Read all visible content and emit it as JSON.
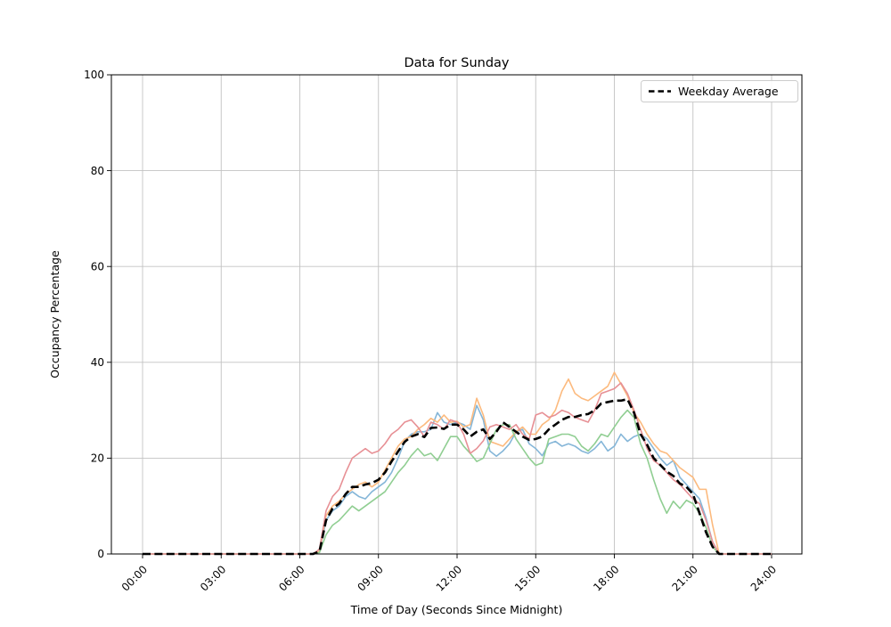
{
  "figure": {
    "background": "#ffffff"
  },
  "chart_data": {
    "type": "line",
    "title": "Data for Sunday",
    "xlabel": "Time of Day (Seconds Since Midnight)",
    "ylabel": "Occupancy Percentage",
    "xlim_seconds": [
      0,
      86400
    ],
    "ylim": [
      0,
      100
    ],
    "x_tick_seconds": [
      0,
      10800,
      21600,
      32400,
      43200,
      54000,
      64800,
      75600,
      86400
    ],
    "x_tick_labels": [
      "00:00",
      "03:00",
      "06:00",
      "09:00",
      "12:00",
      "15:00",
      "18:00",
      "21:00",
      "24:00"
    ],
    "y_ticks": [
      0,
      20,
      40,
      60,
      80,
      100
    ],
    "grid": true,
    "grid_color": "#c2c2c2",
    "spine_color": "#000000",
    "legend": {
      "location": "upper right",
      "entries": [
        {
          "label": "Weekday Average",
          "color": "#000000",
          "style": "dashed"
        }
      ]
    },
    "sample_interval_minutes": 15,
    "x_start_hour": 0,
    "series": [
      {
        "name": "line-1",
        "color": "#85b6d8",
        "dashed": false,
        "values": [
          0,
          0,
          0,
          0,
          0,
          0,
          0,
          0,
          0,
          0,
          0,
          0,
          0,
          0,
          0,
          0,
          0,
          0,
          0,
          0,
          0,
          0,
          0,
          0,
          0,
          0,
          0,
          0.5,
          7,
          9,
          10,
          12,
          13,
          12,
          11.5,
          13,
          14,
          15,
          17,
          20,
          23.5,
          25,
          25.5,
          25.5,
          26,
          29.5,
          27.5,
          27,
          27.5,
          27,
          26,
          31,
          28,
          21.5,
          20.4,
          21.5,
          23,
          25.5,
          26,
          23,
          22,
          20.5,
          23,
          23.5,
          22.5,
          23,
          22.5,
          21.5,
          21,
          22,
          23.5,
          21.5,
          22.5,
          25,
          23.5,
          24.5,
          25,
          24,
          22,
          20,
          18.5,
          19.5,
          16,
          14.5,
          13,
          11.5,
          7.5,
          2.5,
          0,
          0,
          0,
          0,
          0,
          0,
          0,
          0,
          0
        ]
      },
      {
        "name": "line-2",
        "color": "#fcba7e",
        "dashed": false,
        "values": [
          0,
          0,
          0,
          0,
          0,
          0,
          0,
          0,
          0,
          0,
          0,
          0,
          0,
          0,
          0,
          0,
          0,
          0,
          0,
          0,
          0,
          0,
          0,
          0,
          0,
          0,
          0,
          0.5,
          8,
          10,
          11,
          12.5,
          13.5,
          14.5,
          15,
          14,
          15,
          17.5,
          20,
          22.5,
          24,
          24.5,
          26,
          27,
          28.3,
          27.5,
          29,
          27.5,
          27.7,
          26.5,
          27,
          32.5,
          29,
          23.5,
          23,
          22.5,
          24,
          25.5,
          26.5,
          25,
          25,
          27,
          28,
          30,
          34,
          36.5,
          33.5,
          32.5,
          32,
          33,
          34,
          35,
          37.9,
          35.5,
          33,
          29.5,
          27.5,
          25,
          23,
          21.5,
          21,
          19.5,
          18,
          17,
          16,
          13.5,
          13.5,
          6,
          0,
          0,
          0,
          0,
          0,
          0,
          0,
          0,
          0
        ]
      },
      {
        "name": "line-3",
        "color": "#90ce92",
        "dashed": false,
        "values": [
          0,
          0,
          0,
          0,
          0,
          0,
          0,
          0,
          0,
          0,
          0,
          0,
          0,
          0,
          0,
          0,
          0,
          0,
          0,
          0,
          0,
          0,
          0,
          0,
          0,
          0,
          0,
          0.3,
          4,
          6,
          7,
          8.5,
          10,
          9,
          10,
          11,
          12,
          13,
          15,
          17,
          18.5,
          20.5,
          22,
          20.5,
          21,
          19.5,
          22,
          24.5,
          24.5,
          22.5,
          21,
          19.3,
          20,
          23,
          26,
          27,
          27,
          24,
          22,
          20,
          18.5,
          19,
          24,
          24.5,
          25,
          25,
          24.5,
          22.5,
          21.5,
          23,
          25,
          24.5,
          26.5,
          28.5,
          30,
          28.5,
          23,
          20,
          15.5,
          11.5,
          8.5,
          11,
          9.5,
          11.2,
          10.5,
          8.5,
          5.5,
          1.5,
          0,
          0,
          0,
          0,
          0,
          0,
          0,
          0,
          0
        ]
      },
      {
        "name": "line-4",
        "color": "#e79095",
        "dashed": false,
        "values": [
          0,
          0,
          0,
          0,
          0,
          0,
          0,
          0,
          0,
          0,
          0,
          0,
          0,
          0,
          0,
          0,
          0,
          0,
          0,
          0,
          0,
          0,
          0,
          0,
          0,
          0,
          0,
          1,
          9,
          12,
          13.5,
          17,
          20,
          21,
          22,
          21,
          21.5,
          23,
          25,
          26,
          27.5,
          28,
          26.5,
          24.5,
          27.5,
          27,
          26,
          28,
          27.5,
          25,
          21,
          22,
          23.6,
          26.5,
          27,
          26.5,
          26,
          27,
          25,
          24,
          29,
          29.5,
          28.5,
          29,
          30,
          29.5,
          28.5,
          28,
          27.5,
          30,
          33.5,
          34,
          34.5,
          35.7,
          33.5,
          30,
          26,
          22,
          19.5,
          18.5,
          17,
          15.5,
          14.5,
          13,
          11.5,
          10.5,
          7,
          2.5,
          0,
          0,
          0,
          0,
          0,
          0,
          0,
          0,
          0
        ]
      },
      {
        "name": "weekday-average",
        "color": "#000000",
        "dashed": true,
        "values": [
          0,
          0,
          0,
          0,
          0,
          0,
          0,
          0,
          0,
          0,
          0,
          0,
          0,
          0,
          0,
          0,
          0,
          0,
          0,
          0,
          0,
          0,
          0,
          0,
          0,
          0,
          0,
          0.5,
          7,
          9.5,
          10.5,
          12.5,
          14,
          14,
          14.5,
          14.8,
          15.5,
          17,
          19.3,
          21.4,
          23.4,
          24.5,
          25,
          24.4,
          26.3,
          26.4,
          26.1,
          27,
          27,
          26,
          24.5,
          25.5,
          26,
          24,
          25.5,
          27.5,
          26.5,
          25.5,
          24.5,
          23.8,
          24,
          24.5,
          26,
          27,
          28,
          28.6,
          28.6,
          29,
          29.2,
          30,
          31.4,
          31.7,
          32,
          32,
          32.3,
          29.5,
          25,
          22.8,
          20,
          18.6,
          17.2,
          16.3,
          14.7,
          14,
          12.5,
          8.5,
          4.5,
          1.5,
          0,
          0,
          0,
          0,
          0,
          0,
          0,
          0,
          0
        ]
      }
    ]
  }
}
